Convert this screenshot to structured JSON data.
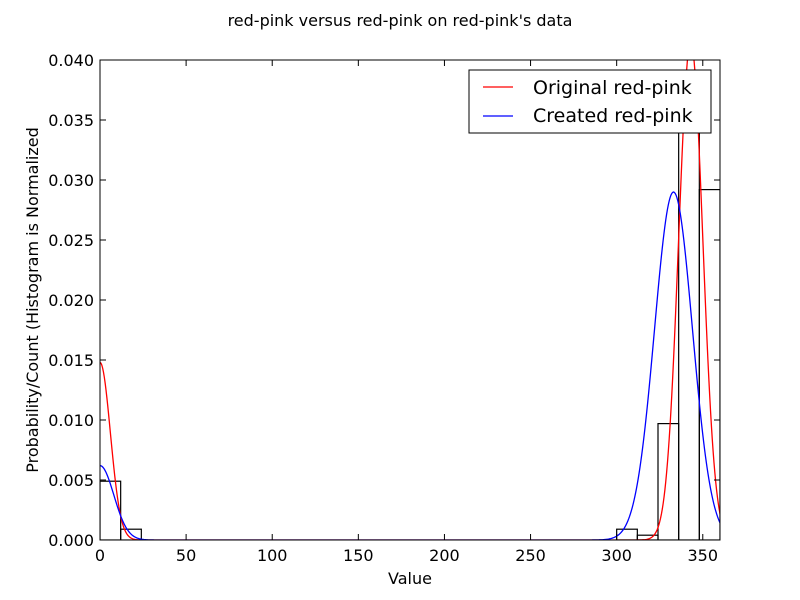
{
  "chart_data": {
    "type": "histogram+line",
    "title": "red-pink versus red-pink on red-pink's data",
    "xlabel": "Value",
    "ylabel": "Probability/Count (Histogram is Normalized",
    "xlim": [
      0,
      360
    ],
    "ylim": [
      0,
      0.04
    ],
    "x_ticks": [
      0,
      50,
      100,
      150,
      200,
      250,
      300,
      350
    ],
    "y_ticks": [
      0.0,
      0.005,
      0.01,
      0.015,
      0.02,
      0.025,
      0.03,
      0.035,
      0.04
    ],
    "y_tick_labels": [
      "0.000",
      "0.005",
      "0.010",
      "0.015",
      "0.020",
      "0.025",
      "0.030",
      "0.035",
      "0.040"
    ],
    "legend_position": "top-right",
    "grid": false,
    "histogram": {
      "color": "#000000",
      "fill": "none",
      "bins": [
        {
          "x0": 0,
          "x1": 12,
          "value": 0.0049
        },
        {
          "x0": 12,
          "x1": 24,
          "value": 0.0009
        },
        {
          "x0": 300,
          "x1": 312,
          "value": 0.0009
        },
        {
          "x0": 312,
          "x1": 324,
          "value": 0.0004
        },
        {
          "x0": 324,
          "x1": 336,
          "value": 0.0097
        },
        {
          "x0": 336,
          "x1": 348,
          "value": 0.038
        },
        {
          "x0": 348,
          "x1": 360,
          "value": 0.0292
        }
      ]
    },
    "series": [
      {
        "name": "Original red-pink",
        "color": "#ff0000",
        "components": [
          {
            "mu": 0,
            "sigma": 6,
            "amplitude": 0.0148
          },
          {
            "mu": 343,
            "sigma": 7,
            "amplitude": 0.0415
          }
        ]
      },
      {
        "name": "Created red-pink",
        "color": "#0000ff",
        "components": [
          {
            "mu": 0,
            "sigma": 8,
            "amplitude": 0.0062
          },
          {
            "mu": 333,
            "sigma": 11,
            "amplitude": 0.029
          }
        ]
      }
    ]
  }
}
